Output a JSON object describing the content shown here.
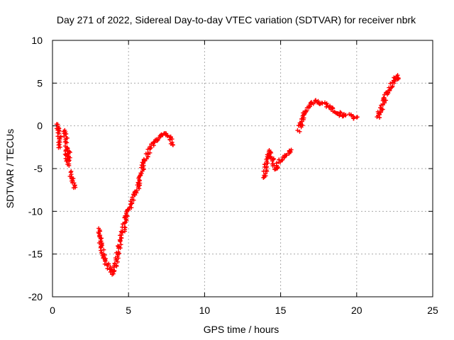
{
  "chart_data": {
    "type": "scatter",
    "title": "Day 271 of 2022, Sidereal Day-to-day VTEC variation (SDTVAR) for receiver nbrk",
    "xlabel": "GPS time / hours",
    "ylabel": "SDTVAR / TECUs",
    "xlim": [
      0,
      25
    ],
    "ylim": [
      -20,
      10
    ],
    "xticks": [
      0,
      5,
      10,
      15,
      20,
      25
    ],
    "yticks": [
      -20,
      -15,
      -10,
      -5,
      0,
      5,
      10
    ],
    "grid": true,
    "marker": "+",
    "color": "#ff0000",
    "series": [
      {
        "name": "SDTVAR",
        "segments": [
          {
            "x": [
              0.35,
              0.4,
              0.45,
              0.5
            ],
            "y": [
              0.2,
              -0.5,
              -1.5,
              -2.5
            ]
          },
          {
            "x": [
              0.8,
              0.85,
              0.9,
              0.95,
              1.0,
              1.05,
              1.1
            ],
            "y": [
              -0.5,
              -1.0,
              -2.5,
              -3.5,
              -4.0,
              -4.5,
              -3.0
            ]
          },
          {
            "x": [
              1.2,
              1.3,
              1.4,
              1.5
            ],
            "y": [
              -5.5,
              -6.0,
              -6.5,
              -7.2
            ]
          },
          {
            "x": [
              3.0,
              3.2,
              3.4,
              3.6,
              3.8,
              3.95,
              4.1,
              4.3,
              4.5,
              4.7,
              4.9,
              5.1,
              5.3,
              5.5,
              5.7,
              5.9,
              6.1,
              6.3,
              6.5,
              6.7,
              6.9,
              7.1,
              7.3,
              7.5,
              7.7,
              7.9
            ],
            "y": [
              -12.0,
              -14.0,
              -15.5,
              -16.3,
              -16.9,
              -17.2,
              -16.5,
              -15.0,
              -13.2,
              -11.8,
              -10.5,
              -9.5,
              -8.5,
              -7.8,
              -6.5,
              -5.2,
              -4.0,
              -3.0,
              -2.3,
              -1.8,
              -1.5,
              -1.3,
              -1.1,
              -1.0,
              -1.2,
              -2.2
            ]
          },
          {
            "x": [
              13.9,
              14.1,
              14.3,
              14.5,
              14.7,
              14.9,
              15.1,
              15.3,
              15.5,
              15.7
            ],
            "y": [
              -6.0,
              -4.0,
              -3.0,
              -4.5,
              -5.0,
              -4.2,
              -3.8,
              -3.5,
              -3.2,
              -2.8
            ]
          },
          {
            "x": [
              16.2,
              16.4,
              16.6,
              16.8,
              17.0,
              17.2,
              17.4,
              17.6,
              17.8,
              18.0,
              18.2,
              18.4,
              18.6,
              18.8,
              19.0,
              19.2,
              19.4,
              19.6,
              19.8,
              20.0
            ],
            "y": [
              -0.5,
              0.5,
              1.5,
              2.2,
              2.6,
              2.8,
              2.8,
              2.7,
              2.6,
              2.5,
              2.3,
              2.0,
              1.7,
              1.4,
              1.3,
              1.3,
              1.2,
              1.1,
              1.0,
              1.0
            ]
          },
          {
            "x": [
              21.4,
              21.6,
              21.8,
              22.0,
              22.2,
              22.4,
              22.6,
              22.75
            ],
            "y": [
              1.0,
              2.0,
              3.0,
              3.8,
              4.5,
              5.2,
              5.8,
              5.5
            ]
          }
        ]
      }
    ]
  }
}
